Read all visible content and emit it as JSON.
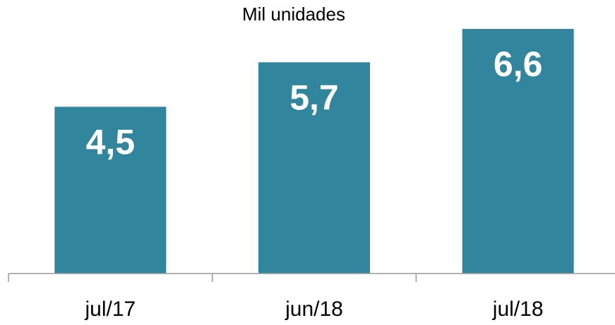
{
  "chart_data": {
    "type": "bar",
    "title": "Mil unidades",
    "categories": [
      "jul/17",
      "jun/18",
      "jul/18"
    ],
    "values": [
      4.5,
      5.7,
      6.6
    ],
    "value_labels": [
      "4,5",
      "5,7",
      "6,6"
    ],
    "color": "#31869e",
    "ylim": [
      0,
      7
    ]
  }
}
